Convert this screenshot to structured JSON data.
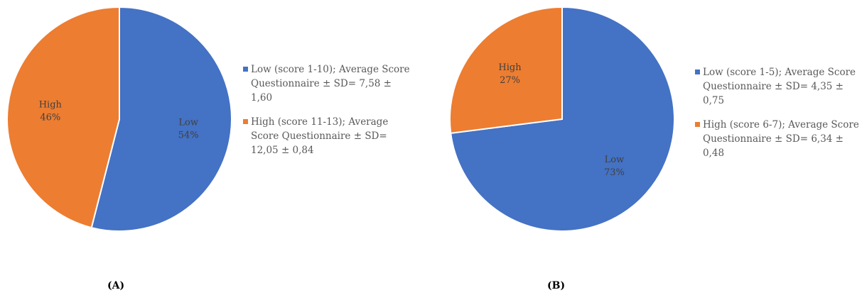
{
  "colors": {
    "low": "#4472C4",
    "high": "#ED7D31",
    "stroke": "#FFFFFF"
  },
  "chart_data": [
    {
      "type": "pie",
      "panel_label": "(A)",
      "slices": [
        {
          "name": "Low",
          "value": 54,
          "percent_label": "54%",
          "color": "#4472C4"
        },
        {
          "name": "High",
          "value": 46,
          "percent_label": "46%",
          "color": "#ED7D31"
        }
      ],
      "legend": [
        {
          "key": "low",
          "text": "Low (score 1-10); Average Score Questionnaire ± SD= 7,58 ± 1,60"
        },
        {
          "key": "high",
          "text": "High (score 11-13); Average Score Questionnaire ± SD= 12,05 ± 0,84"
        }
      ],
      "legend_position": "right"
    },
    {
      "type": "pie",
      "panel_label": "(B)",
      "slices": [
        {
          "name": "Low",
          "value": 73,
          "percent_label": "73%",
          "color": "#4472C4"
        },
        {
          "name": "High",
          "value": 27,
          "percent_label": "27%",
          "color": "#ED7D31"
        }
      ],
      "legend": [
        {
          "key": "low",
          "text": "Low (score 1-5); Average Score Questionnaire ± SD= 4,35 ± 0,75"
        },
        {
          "key": "high",
          "text": "High (score 6-7); Average Score Questionnaire ± SD= 6,34 ± 0,48"
        }
      ],
      "legend_position": "right"
    }
  ]
}
